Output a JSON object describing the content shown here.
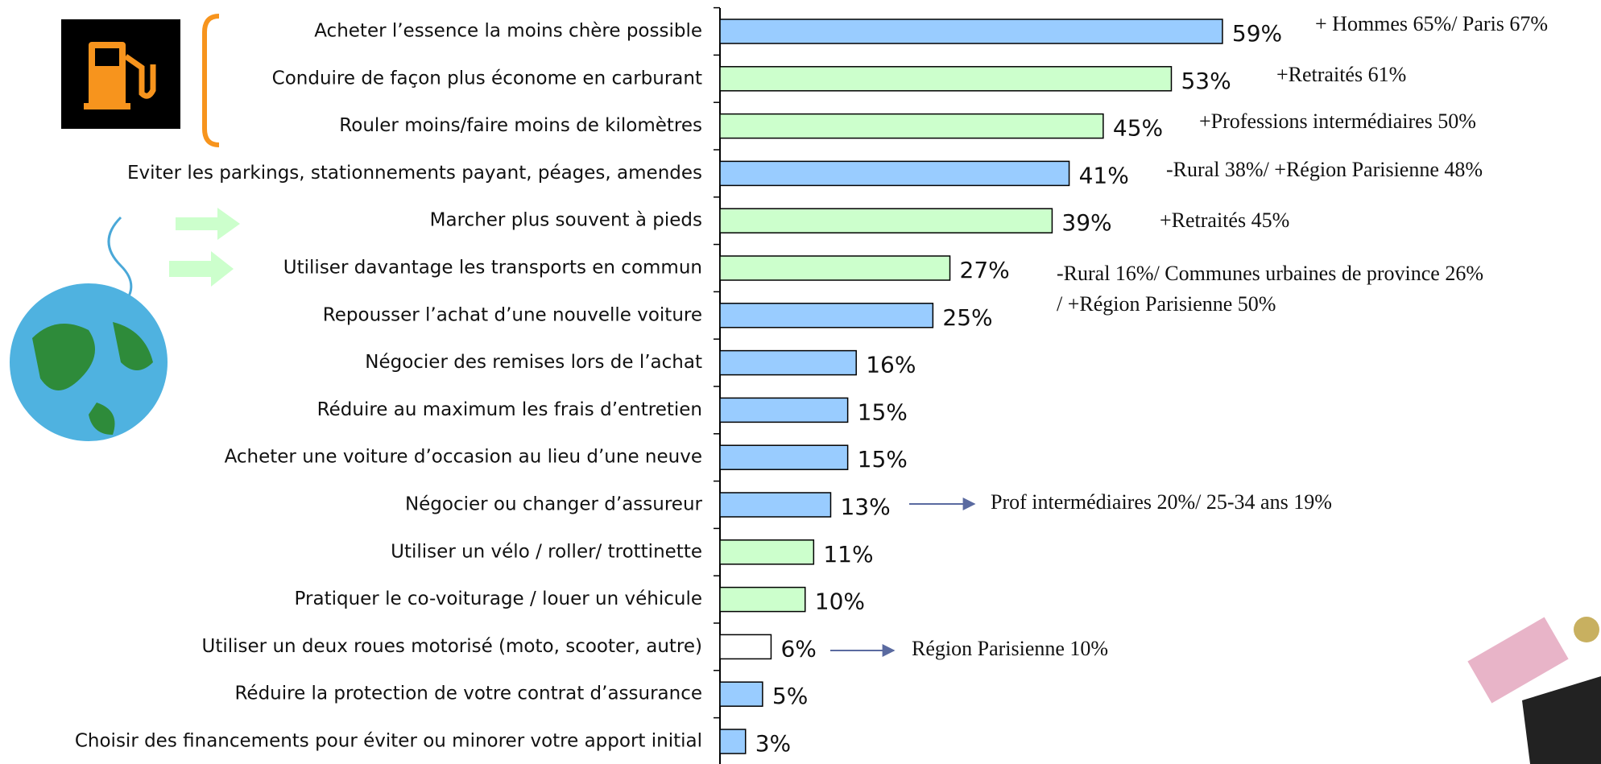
{
  "chart_data": {
    "type": "bar",
    "orientation": "horizontal",
    "categories": [
      "Acheter l’essence la moins chère possible",
      "Conduire de façon plus économe en carburant",
      "Rouler moins/faire moins de kilomètres",
      "Eviter les parkings, stationnements payant, péages, amendes",
      "Marcher plus souvent à pieds",
      "Utiliser davantage les transports en commun",
      "Repousser l’achat d’une nouvelle voiture",
      "Négocier des remises lors de l’achat",
      "Réduire au maximum les frais d’entretien",
      "Acheter une voiture d’occasion au lieu d’une neuve",
      "Négocier ou changer d’assureur",
      "Utiliser un vélo / roller/ trottinette",
      "Pratiquer le co-voiturage / louer un véhicule",
      "Utiliser un deux roues motorisé (moto, scooter, autre)",
      "Réduire la protection de votre contrat d’assurance",
      "Choisir des financements pour éviter ou minorer votre apport initial"
    ],
    "values": [
      59,
      53,
      45,
      41,
      39,
      27,
      25,
      16,
      15,
      15,
      13,
      11,
      10,
      6,
      5,
      3
    ],
    "value_labels": [
      "59%",
      "53%",
      "45%",
      "41%",
      "39%",
      "27%",
      "25%",
      "16%",
      "15%",
      "15%",
      "13%",
      "11%",
      "10%",
      "6%",
      "5%",
      "3%"
    ],
    "colors": [
      "#99ccff",
      "#ccffcc",
      "#ccffcc",
      "#99ccff",
      "#ccffcc",
      "#ccffcc",
      "#99ccff",
      "#99ccff",
      "#99ccff",
      "#99ccff",
      "#99ccff",
      "#ccffcc",
      "#ccffcc",
      "#ffffff",
      "#99ccff",
      "#99ccff"
    ],
    "annotations": [
      "+ Hommes 65%/ Paris 67%",
      "+Retraités 61%",
      "+Professions intermédiaires 50%",
      "-Rural 38%/ +Région Parisienne 48%",
      "+Retraités 45%",
      "-Rural 16%/ Communes urbaines de province 26%",
      "/ +Région Parisienne 50%",
      "Prof intermédiaires 20%/ 25-34 ans 19%",
      "Région Parisienne 10%"
    ]
  }
}
